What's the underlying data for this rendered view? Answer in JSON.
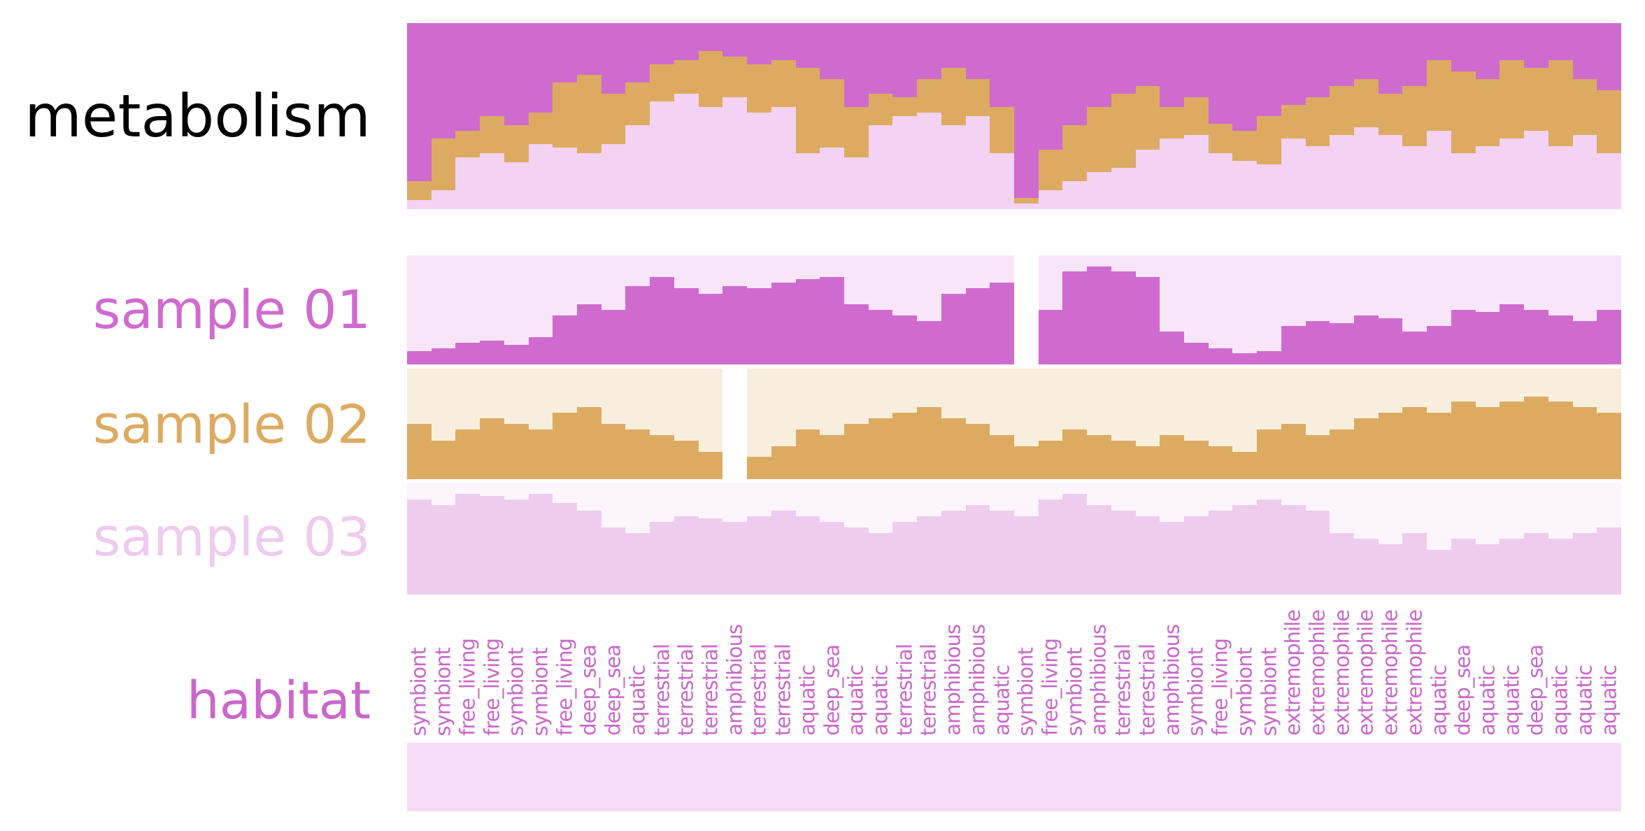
{
  "figure": {
    "background": "#ffffff",
    "row_labels": {
      "metabolism": "metabolism",
      "sample01": "sample 01",
      "sample02": "sample 02",
      "sample03": "sample 03",
      "habitat": "habitat"
    },
    "colors": {
      "magenta": "#cf6bcf",
      "tan": "#dcab61",
      "light_pink": "#f3d2f3",
      "sample01_bg": "#f8e6f8",
      "sample02_bg": "#f8eedd",
      "sample03_bg": "#fcf5fc",
      "sample03_bar": "#eeccee",
      "habitat_text": "#c968c9",
      "habitat_band": "#f5dbf5",
      "metabolism_label": "#000000"
    }
  },
  "chart_data": {
    "type": "bar",
    "title": "",
    "n_columns": 50,
    "xlabel": "",
    "ylabel": "",
    "ylim": [
      0,
      1
    ],
    "legend": "none",
    "grid": false,
    "tracks": [
      {
        "name": "metabolism",
        "type": "stacked_bar_proportion",
        "series": [
          {
            "name": "magenta",
            "color": "#cf6bcf",
            "values": [
              0.85,
              0.62,
              0.58,
              0.5,
              0.55,
              0.48,
              0.32,
              0.28,
              0.38,
              0.32,
              0.22,
              0.2,
              0.15,
              0.18,
              0.22,
              0.2,
              0.24,
              0.3,
              0.45,
              0.38,
              0.4,
              0.3,
              0.24,
              0.3,
              0.45,
              0.94,
              0.68,
              0.55,
              0.45,
              0.38,
              0.34,
              0.45,
              0.4,
              0.54,
              0.58,
              0.5,
              0.44,
              0.4,
              0.34,
              0.3,
              0.38,
              0.34,
              0.2,
              0.26,
              0.3,
              0.2,
              0.24,
              0.2,
              0.3,
              0.36
            ]
          },
          {
            "name": "tan",
            "color": "#dcab61",
            "values": [
              0.1,
              0.28,
              0.14,
              0.2,
              0.2,
              0.17,
              0.35,
              0.42,
              0.27,
              0.23,
              0.2,
              0.18,
              0.3,
              0.22,
              0.26,
              0.25,
              0.46,
              0.37,
              0.27,
              0.17,
              0.1,
              0.18,
              0.31,
              0.2,
              0.25,
              0.03,
              0.22,
              0.3,
              0.35,
              0.4,
              0.34,
              0.17,
              0.2,
              0.16,
              0.16,
              0.26,
              0.18,
              0.26,
              0.26,
              0.26,
              0.22,
              0.32,
              0.38,
              0.44,
              0.36,
              0.42,
              0.34,
              0.46,
              0.3,
              0.34
            ]
          },
          {
            "name": "light-pink",
            "color": "#f3d2f3",
            "values": [
              0.05,
              0.1,
              0.28,
              0.3,
              0.25,
              0.35,
              0.33,
              0.3,
              0.35,
              0.45,
              0.58,
              0.62,
              0.55,
              0.6,
              0.52,
              0.55,
              0.3,
              0.33,
              0.28,
              0.45,
              0.5,
              0.52,
              0.45,
              0.5,
              0.3,
              0.03,
              0.1,
              0.15,
              0.2,
              0.22,
              0.32,
              0.38,
              0.4,
              0.3,
              0.26,
              0.24,
              0.38,
              0.34,
              0.4,
              0.44,
              0.4,
              0.34,
              0.42,
              0.3,
              0.34,
              0.38,
              0.42,
              0.34,
              0.4,
              0.3
            ]
          }
        ]
      },
      {
        "name": "sample 01",
        "type": "bar",
        "color": "#cf6bcf",
        "background": "#f8e6f8",
        "gap_columns": [
          25
        ],
        "values": [
          0.12,
          0.15,
          0.2,
          0.22,
          0.18,
          0.25,
          0.45,
          0.55,
          0.5,
          0.72,
          0.8,
          0.7,
          0.65,
          0.72,
          0.7,
          0.75,
          0.78,
          0.8,
          0.55,
          0.5,
          0.45,
          0.4,
          0.65,
          0.7,
          0.75,
          0.0,
          0.5,
          0.85,
          0.9,
          0.85,
          0.8,
          0.3,
          0.2,
          0.15,
          0.1,
          0.12,
          0.35,
          0.4,
          0.38,
          0.45,
          0.42,
          0.3,
          0.35,
          0.5,
          0.48,
          0.55,
          0.5,
          0.45,
          0.4,
          0.5
        ]
      },
      {
        "name": "sample 02",
        "type": "bar",
        "color": "#dcab61",
        "background": "#f8eedd",
        "gap_columns": [
          13
        ],
        "values": [
          0.5,
          0.35,
          0.45,
          0.55,
          0.5,
          0.45,
          0.6,
          0.65,
          0.5,
          0.45,
          0.4,
          0.35,
          0.25,
          0.0,
          0.2,
          0.3,
          0.45,
          0.4,
          0.5,
          0.55,
          0.6,
          0.65,
          0.55,
          0.5,
          0.4,
          0.3,
          0.35,
          0.45,
          0.4,
          0.35,
          0.3,
          0.4,
          0.35,
          0.3,
          0.25,
          0.45,
          0.5,
          0.4,
          0.45,
          0.55,
          0.6,
          0.65,
          0.6,
          0.7,
          0.65,
          0.7,
          0.75,
          0.7,
          0.65,
          0.6
        ]
      },
      {
        "name": "sample 03",
        "type": "bar",
        "color": "#eeccee",
        "background": "#fcf5fc",
        "gap_columns": [],
        "values": [
          0.85,
          0.8,
          0.9,
          0.88,
          0.85,
          0.9,
          0.82,
          0.75,
          0.6,
          0.55,
          0.65,
          0.7,
          0.68,
          0.65,
          0.7,
          0.75,
          0.7,
          0.65,
          0.6,
          0.55,
          0.65,
          0.7,
          0.75,
          0.8,
          0.75,
          0.7,
          0.85,
          0.9,
          0.8,
          0.75,
          0.7,
          0.65,
          0.7,
          0.75,
          0.8,
          0.85,
          0.8,
          0.75,
          0.55,
          0.5,
          0.45,
          0.55,
          0.4,
          0.5,
          0.45,
          0.5,
          0.55,
          0.5,
          0.55,
          0.6
        ]
      },
      {
        "name": "habitat",
        "type": "labels",
        "color": "#c968c9",
        "band_color": "#f5dbf5",
        "labels": [
          "symbiont",
          "symbiont",
          "free_living",
          "free_living",
          "symbiont",
          "symbiont",
          "free_living",
          "deep_sea",
          "deep_sea",
          "aquatic",
          "terrestrial",
          "terrestrial",
          "terrestrial",
          "amphibious",
          "terrestrial",
          "terrestrial",
          "aquatic",
          "deep_sea",
          "aquatic",
          "aquatic",
          "terrestrial",
          "terrestrial",
          "amphibious",
          "amphibious",
          "aquatic",
          "symbiont",
          "free_living",
          "symbiont",
          "amphibious",
          "terrestrial",
          "terrestrial",
          "amphibious",
          "symbiont",
          "free_living",
          "symbiont",
          "symbiont",
          "extremophile",
          "extremophile",
          "extremophile",
          "extremophile",
          "extremophile",
          "extremophile",
          "aquatic",
          "deep_sea",
          "aquatic",
          "aquatic",
          "deep_sea",
          "aquatic",
          "aquatic",
          "aquatic"
        ]
      }
    ]
  }
}
